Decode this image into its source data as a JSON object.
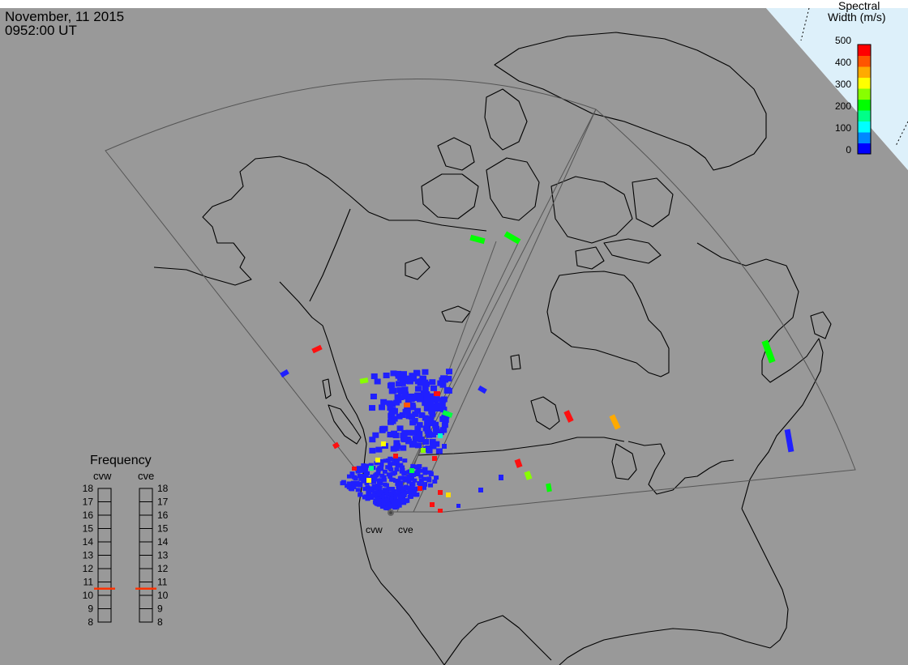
{
  "header": {
    "date": "November, 11 2015",
    "time": "0952:00 UT"
  },
  "colorbar": {
    "title_line1": "Spectral",
    "title_line2": "Width (m/s)",
    "ticks": [
      "500",
      "400",
      "300",
      "200",
      "100",
      "0"
    ],
    "colors": [
      "#0000ff",
      "#0088ff",
      "#00ffff",
      "#00ff88",
      "#00ff00",
      "#88ff00",
      "#ffff00",
      "#ffaa00",
      "#ff5500",
      "#ff0000"
    ]
  },
  "frequency": {
    "title": "Frequency",
    "radars": [
      "cvw",
      "cve"
    ],
    "ticks": [
      "18",
      "17",
      "16",
      "15",
      "14",
      "13",
      "12",
      "11",
      "10",
      "9",
      "8"
    ],
    "selected_mhz": [
      10.5,
      10.5
    ],
    "marker_color": "#ff3300"
  },
  "sites": [
    {
      "label": "cvw"
    },
    {
      "label": "cve"
    }
  ],
  "colors": {
    "map_background": "#999999",
    "sky_background": "#ffffff",
    "coastline": "#000000",
    "fov_outline": "#555555"
  }
}
